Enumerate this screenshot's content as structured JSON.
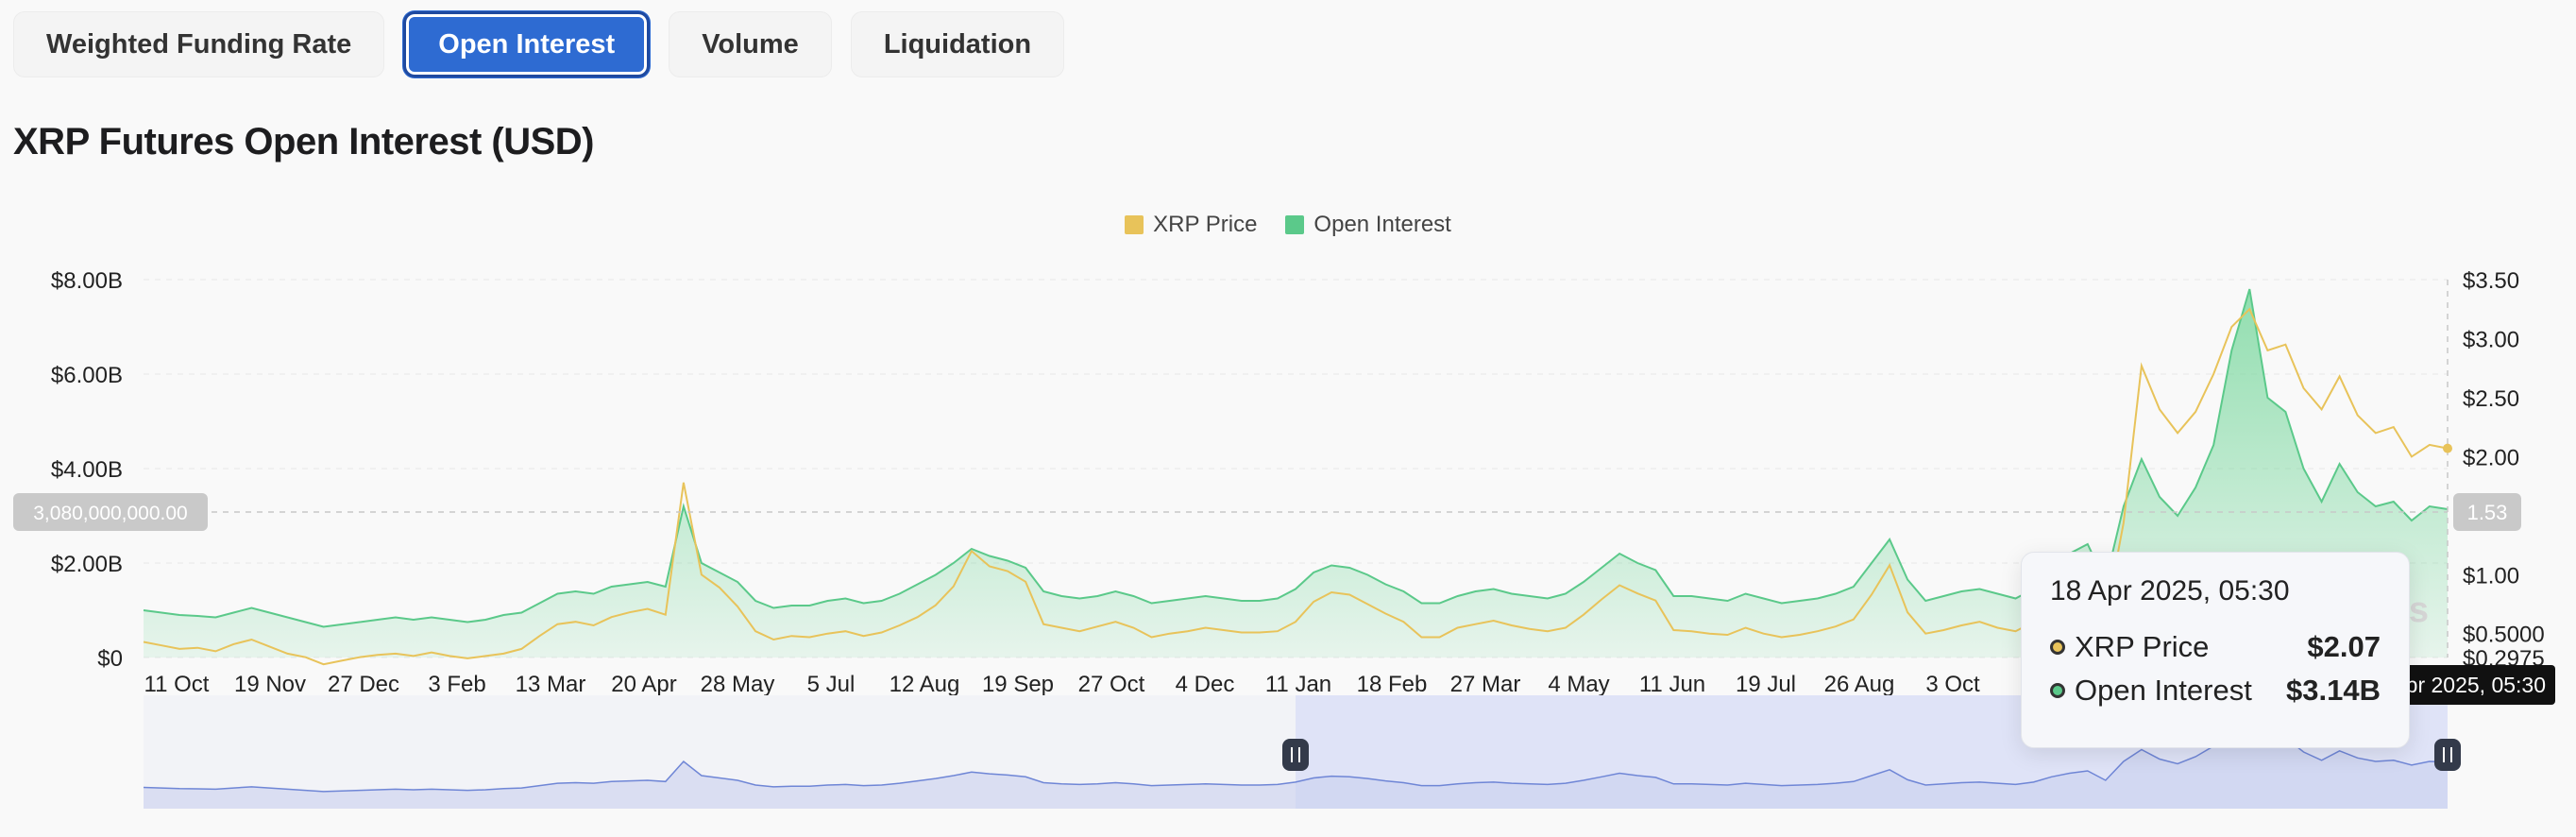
{
  "tabs": [
    {
      "label": "Weighted Funding Rate"
    },
    {
      "label": "Open Interest",
      "active": true
    },
    {
      "label": "Volume"
    },
    {
      "label": "Liquidation"
    }
  ],
  "title": "XRP Futures Open Interest (USD)",
  "colors": {
    "price": "#e8c35a",
    "oi": "#5bc98a",
    "oi_fill": "#7fd9a2",
    "active_tab": "#2e6bd2",
    "nav": "#6f86d6"
  },
  "tooltip": {
    "time": "18 Apr 2025, 05:30",
    "rows": [
      {
        "name": "XRP Price",
        "value": "$2.07"
      },
      {
        "name": "Open Interest",
        "value": "$3.14B"
      }
    ]
  },
  "crosshair": {
    "y_left_label": "3,080,000,000.00",
    "y_right_label": "1.53",
    "x_label": "18 Apr 2025, 05:30"
  },
  "watermark": "ss",
  "chart_data": {
    "type": "line",
    "title": "XRP Futures Open Interest (USD)",
    "legend_position": "top-center",
    "series": [
      {
        "name": "XRP Price",
        "axis": "right",
        "values": [
          0.43,
          0.4,
          0.37,
          0.38,
          0.35,
          0.41,
          0.45,
          0.39,
          0.33,
          0.3,
          0.24,
          0.27,
          0.3,
          0.32,
          0.33,
          0.31,
          0.34,
          0.31,
          0.29,
          0.31,
          0.33,
          0.37,
          0.48,
          0.58,
          0.6,
          0.57,
          0.64,
          0.68,
          0.71,
          0.66,
          1.78,
          1.0,
          0.89,
          0.73,
          0.52,
          0.45,
          0.48,
          0.47,
          0.5,
          0.52,
          0.48,
          0.51,
          0.57,
          0.64,
          0.74,
          0.9,
          1.2,
          1.07,
          1.03,
          0.94,
          0.58,
          0.55,
          0.52,
          0.56,
          0.6,
          0.55,
          0.47,
          0.5,
          0.52,
          0.55,
          0.53,
          0.51,
          0.51,
          0.52,
          0.6,
          0.77,
          0.85,
          0.83,
          0.75,
          0.67,
          0.6,
          0.47,
          0.47,
          0.55,
          0.58,
          0.61,
          0.57,
          0.54,
          0.52,
          0.55,
          0.66,
          0.79,
          0.91,
          0.84,
          0.78,
          0.53,
          0.52,
          0.5,
          0.49,
          0.55,
          0.5,
          0.47,
          0.49,
          0.52,
          0.56,
          0.62,
          0.83,
          1.08,
          0.68,
          0.5,
          0.53,
          0.57,
          0.6,
          0.55,
          0.52,
          0.6,
          0.79,
          0.89,
          0.97,
          0.63,
          1.44,
          2.77,
          2.4,
          2.2,
          2.38,
          2.7,
          3.1,
          3.25,
          2.9,
          2.95,
          2.58,
          2.4,
          2.68,
          2.35,
          2.2,
          2.25,
          2.0,
          2.1,
          2.07
        ]
      },
      {
        "name": "Open Interest",
        "axis": "left",
        "values": [
          1.0,
          0.95,
          0.9,
          0.88,
          0.85,
          0.95,
          1.05,
          0.95,
          0.85,
          0.75,
          0.65,
          0.7,
          0.75,
          0.8,
          0.85,
          0.8,
          0.85,
          0.8,
          0.75,
          0.8,
          0.9,
          0.95,
          1.15,
          1.35,
          1.4,
          1.35,
          1.5,
          1.55,
          1.6,
          1.5,
          3.2,
          2.0,
          1.8,
          1.6,
          1.2,
          1.05,
          1.1,
          1.1,
          1.2,
          1.25,
          1.15,
          1.2,
          1.35,
          1.55,
          1.75,
          2.0,
          2.3,
          2.15,
          2.05,
          1.9,
          1.4,
          1.3,
          1.25,
          1.3,
          1.4,
          1.3,
          1.15,
          1.2,
          1.25,
          1.3,
          1.25,
          1.2,
          1.2,
          1.25,
          1.45,
          1.8,
          1.95,
          1.9,
          1.75,
          1.55,
          1.4,
          1.15,
          1.15,
          1.3,
          1.4,
          1.45,
          1.35,
          1.3,
          1.25,
          1.35,
          1.6,
          1.9,
          2.2,
          2.0,
          1.85,
          1.3,
          1.3,
          1.25,
          1.2,
          1.35,
          1.25,
          1.15,
          1.2,
          1.25,
          1.35,
          1.5,
          2.0,
          2.5,
          1.65,
          1.2,
          1.3,
          1.4,
          1.45,
          1.35,
          1.25,
          1.45,
          1.9,
          2.2,
          2.4,
          1.6,
          3.2,
          4.2,
          3.4,
          3.0,
          3.6,
          4.5,
          6.5,
          7.8,
          5.5,
          5.2,
          4.0,
          3.3,
          4.1,
          3.5,
          3.2,
          3.3,
          2.9,
          3.2,
          3.14
        ]
      }
    ],
    "x_labels": [
      "11 Oct",
      "19 Nov",
      "27 Dec",
      "3 Feb",
      "13 Mar",
      "20 Apr",
      "28 May",
      "5 Jul",
      "12 Aug",
      "19 Sep",
      "27 Oct",
      "4 Dec",
      "11 Jan",
      "18 Feb",
      "27 Mar",
      "4 May",
      "11 Jun",
      "19 Jul",
      "26 Aug",
      "3 Oct"
    ],
    "y_left": {
      "ticks": [
        "$0",
        "$2.00B",
        "$4.00B",
        "$6.00B",
        "$8.00B"
      ],
      "ylim": [
        0,
        8
      ]
    },
    "y_right": {
      "ticks": [
        "$0.2975",
        "$0.5000",
        "$1.00",
        "$1.50",
        "$2.00",
        "$2.50",
        "$3.00",
        "$3.50"
      ],
      "ylim": [
        0.2975,
        3.5
      ]
    },
    "grid": true,
    "navigator": {
      "selection_start": 0.5,
      "selection_end": 1.0
    }
  }
}
